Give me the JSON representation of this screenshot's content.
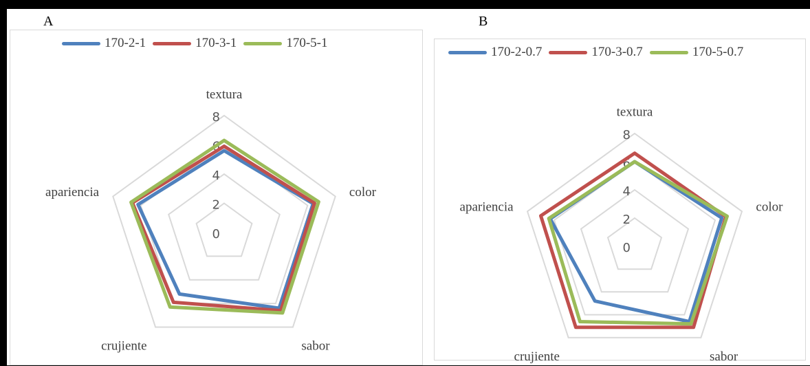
{
  "panels": [
    {
      "letter": "A"
    },
    {
      "letter": "B"
    }
  ],
  "colors": {
    "s1": "#4f81bd",
    "s2": "#c0504d",
    "s3": "#9bbb59",
    "grid": "#d9d9d9"
  },
  "chart_data": [
    {
      "type": "radar",
      "title": "",
      "categories": [
        "textura",
        "color",
        "sabor",
        "crujiente",
        "apariencia"
      ],
      "axis": {
        "min": 0,
        "max": 8,
        "ticks": [
          0,
          2,
          4,
          6,
          8
        ],
        "grid": true
      },
      "legend": "top",
      "series": [
        {
          "name": "170-2-1",
          "color": "#4f81bd",
          "values": [
            5.6,
            6.4,
            6.4,
            5.2,
            6.2
          ]
        },
        {
          "name": "170-3-1",
          "color": "#c0504d",
          "values": [
            5.9,
            6.5,
            6.6,
            5.9,
            6.6
          ]
        },
        {
          "name": "170-5-1",
          "color": "#9bbb59",
          "values": [
            6.3,
            6.8,
            6.8,
            6.3,
            6.7
          ]
        }
      ]
    },
    {
      "type": "radar",
      "title": "",
      "categories": [
        "textura",
        "color",
        "sabor",
        "crujiente",
        "apariencia"
      ],
      "axis": {
        "min": 0,
        "max": 8,
        "ticks": [
          0,
          2,
          4,
          6,
          8
        ],
        "grid": true
      },
      "legend": "top",
      "series": [
        {
          "name": "170-2-0.7",
          "color": "#4f81bd",
          "values": [
            6.0,
            6.5,
            6.6,
            4.8,
            6.3
          ]
        },
        {
          "name": "170-3-0.7",
          "color": "#c0504d",
          "values": [
            6.6,
            6.8,
            7.1,
            7.1,
            7.0
          ]
        },
        {
          "name": "170-5-0.7",
          "color": "#9bbb59",
          "values": [
            6.0,
            6.9,
            6.8,
            6.6,
            6.4
          ]
        }
      ]
    }
  ]
}
